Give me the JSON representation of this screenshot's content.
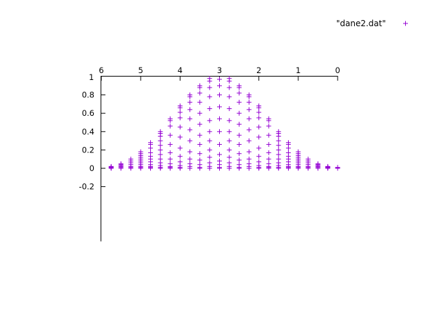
{
  "chart_data": {
    "type": "scatter",
    "title": "",
    "xlabel": "",
    "ylabel": "",
    "x_reversed": true,
    "xlim": [
      6,
      0
    ],
    "ylim": [
      -0.2,
      1
    ],
    "x_ticks": [
      "6",
      "5",
      "4",
      "3",
      "2",
      "1",
      "0"
    ],
    "y_ticks": [
      "0.8",
      "0.6",
      "0.4",
      "0.2",
      "0",
      "-0.2"
    ],
    "top_left_overlapped_tick_label": "1",
    "legend_placement": "top-right",
    "grid": false,
    "marker": "+",
    "color": "#9400d3",
    "series": [
      {
        "name": "\"dane2.dat\"",
        "points_by_column": [
          {
            "x": 5.75,
            "y": [
              0,
              0.005,
              0.01,
              0.015,
              0.02
            ]
          },
          {
            "x": 5.5,
            "y": [
              0,
              0.01,
              0.02,
              0.03,
              0.04,
              0.05
            ]
          },
          {
            "x": 5.25,
            "y": [
              0,
              0.01,
              0.02,
              0.04,
              0.06,
              0.08,
              0.1
            ]
          },
          {
            "x": 5.0,
            "y": [
              0,
              0.01,
              0.02,
              0.04,
              0.06,
              0.08,
              0.1,
              0.12,
              0.14,
              0.16,
              0.18
            ]
          },
          {
            "x": 4.75,
            "y": [
              0,
              0.01,
              0.02,
              0.04,
              0.07,
              0.1,
              0.13,
              0.17,
              0.22,
              0.26,
              0.28
            ]
          },
          {
            "x": 4.5,
            "y": [
              0,
              0.01,
              0.03,
              0.06,
              0.1,
              0.15,
              0.2,
              0.25,
              0.3,
              0.35,
              0.38,
              0.4
            ]
          },
          {
            "x": 4.25,
            "y": [
              0,
              0.01,
              0.02,
              0.05,
              0.1,
              0.17,
              0.26,
              0.36,
              0.46,
              0.52,
              0.54
            ]
          },
          {
            "x": 4.0,
            "y": [
              0,
              0.01,
              0.03,
              0.07,
              0.13,
              0.22,
              0.34,
              0.45,
              0.55,
              0.61,
              0.66,
              0.68
            ]
          },
          {
            "x": 3.75,
            "y": [
              0,
              0.02,
              0.05,
              0.1,
              0.18,
              0.3,
              0.42,
              0.54,
              0.64,
              0.72,
              0.78,
              0.8
            ]
          },
          {
            "x": 3.5,
            "y": [
              0,
              0.01,
              0.04,
              0.09,
              0.16,
              0.26,
              0.36,
              0.48,
              0.6,
              0.72,
              0.82,
              0.88,
              0.9
            ]
          },
          {
            "x": 3.25,
            "y": [
              0,
              0.02,
              0.06,
              0.12,
              0.2,
              0.3,
              0.4,
              0.52,
              0.65,
              0.78,
              0.88,
              0.95,
              0.98
            ]
          },
          {
            "x": 3.0,
            "y": [
              0,
              0.01,
              0.04,
              0.08,
              0.15,
              0.26,
              0.4,
              0.54,
              0.67,
              0.8,
              0.9,
              0.97
            ]
          },
          {
            "x": 2.75,
            "y": [
              0,
              0.02,
              0.06,
              0.12,
              0.2,
              0.3,
              0.4,
              0.52,
              0.65,
              0.78,
              0.88,
              0.95,
              0.98
            ]
          },
          {
            "x": 2.5,
            "y": [
              0,
              0.01,
              0.04,
              0.09,
              0.16,
              0.26,
              0.36,
              0.48,
              0.6,
              0.72,
              0.82,
              0.88,
              0.9
            ]
          },
          {
            "x": 2.25,
            "y": [
              0,
              0.02,
              0.05,
              0.1,
              0.18,
              0.3,
              0.42,
              0.54,
              0.64,
              0.72,
              0.78,
              0.8
            ]
          },
          {
            "x": 2.0,
            "y": [
              0,
              0.01,
              0.03,
              0.07,
              0.13,
              0.22,
              0.34,
              0.45,
              0.55,
              0.61,
              0.66,
              0.68
            ]
          },
          {
            "x": 1.75,
            "y": [
              0,
              0.01,
              0.02,
              0.05,
              0.1,
              0.17,
              0.26,
              0.36,
              0.46,
              0.52,
              0.54
            ]
          },
          {
            "x": 1.5,
            "y": [
              0,
              0.01,
              0.03,
              0.06,
              0.1,
              0.15,
              0.2,
              0.25,
              0.3,
              0.35,
              0.38,
              0.4
            ]
          },
          {
            "x": 1.25,
            "y": [
              0,
              0.01,
              0.02,
              0.04,
              0.07,
              0.1,
              0.13,
              0.17,
              0.22,
              0.26,
              0.28
            ]
          },
          {
            "x": 1.0,
            "y": [
              0,
              0.01,
              0.02,
              0.04,
              0.06,
              0.08,
              0.1,
              0.12,
              0.14,
              0.16,
              0.18
            ]
          },
          {
            "x": 0.75,
            "y": [
              0,
              0.01,
              0.02,
              0.04,
              0.06,
              0.08,
              0.1
            ]
          },
          {
            "x": 0.5,
            "y": [
              0,
              0.01,
              0.02,
              0.03,
              0.04,
              0.05
            ]
          },
          {
            "x": 0.25,
            "y": [
              0,
              0.005,
              0.01,
              0.015,
              0.02
            ]
          },
          {
            "x": 0.0,
            "y": [
              0,
              0.005,
              0.01
            ]
          }
        ]
      }
    ]
  }
}
